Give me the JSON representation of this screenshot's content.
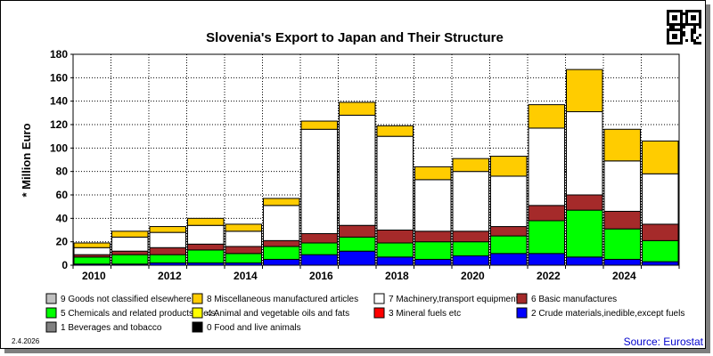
{
  "chart_data": {
    "type": "bar",
    "stacked": true,
    "title": "Slovenia's Export to Japan and Their Structure",
    "ylabel": "* Million Euro",
    "xlabel": "",
    "ylim": [
      0,
      180
    ],
    "yticks": [
      0,
      20,
      40,
      60,
      80,
      100,
      120,
      140,
      160,
      180
    ],
    "x_tick_labels": [
      "2010",
      "2012",
      "2014",
      "2016",
      "2018",
      "2020",
      "2022",
      "2024"
    ],
    "grid": true,
    "categories": [
      "2010",
      "2011",
      "2012",
      "2013",
      "2014",
      "2015",
      "2016",
      "2017",
      "2018",
      "2019",
      "2020",
      "2021",
      "2022",
      "2023",
      "2024",
      "2025"
    ],
    "series": [
      {
        "name": "0 Food and live animals",
        "color": "#000000",
        "values": [
          0,
          0,
          0,
          0,
          0,
          0,
          0,
          0,
          0,
          0,
          0,
          0,
          0,
          0,
          0,
          0
        ]
      },
      {
        "name": "1 Beverages and tobacco",
        "color": "#808080",
        "values": [
          0,
          0,
          0,
          0,
          0,
          0,
          0,
          0,
          0,
          0,
          0,
          0,
          0,
          0,
          0,
          0
        ]
      },
      {
        "name": "2 Crude materials,inedible,except fuels",
        "color": "#0000ff",
        "values": [
          1,
          1,
          2,
          2,
          2,
          5,
          9,
          12,
          7,
          5,
          8,
          10,
          10,
          7,
          5,
          3
        ]
      },
      {
        "name": "3 Mineral fuels etc",
        "color": "#ff0000",
        "values": [
          0,
          0,
          0,
          0,
          0,
          0,
          0,
          0,
          0,
          0,
          0,
          0,
          0,
          0,
          0,
          0
        ]
      },
      {
        "name": "5 Chemicals and related products,n.e.s.",
        "color": "#00ff00",
        "values": [
          6,
          8,
          7,
          11,
          8,
          11,
          10,
          12,
          12,
          15,
          12,
          15,
          28,
          40,
          26,
          18
        ]
      },
      {
        "name": "6 Basic manufactures",
        "color": "#a52a2a",
        "values": [
          2,
          3,
          6,
          5,
          6,
          5,
          8,
          10,
          11,
          9,
          9,
          8,
          13,
          13,
          15,
          14
        ]
      },
      {
        "name": "7 Machinery,transport equipment",
        "color": "#ffffff",
        "values": [
          6,
          12,
          13,
          16,
          13,
          30,
          89,
          94,
          80,
          44,
          51,
          43,
          66,
          71,
          43,
          43
        ]
      },
      {
        "name": "4 Animal and vegetable oils and fats",
        "color": "#ffff00",
        "values": [
          0,
          0,
          0,
          0,
          0,
          0,
          0,
          0,
          0,
          0,
          0,
          0,
          0,
          0,
          0,
          0
        ]
      },
      {
        "name": "8 Miscellaneous manufactured articles",
        "color": "#ffcc00",
        "values": [
          4,
          5,
          5,
          6,
          6,
          6,
          7,
          11,
          9,
          11,
          11,
          17,
          20,
          36,
          27,
          28
        ]
      },
      {
        "name": "9 Goods not classified elsewhere",
        "color": "#c0c0c0",
        "values": [
          0,
          0,
          0,
          0,
          0,
          0,
          0,
          0,
          0,
          0,
          0,
          0,
          0,
          0,
          0,
          0
        ]
      }
    ],
    "legend_placement": "bottom"
  },
  "legend": [
    {
      "label": "9 Goods not classified elsewhere",
      "color": "#c0c0c0"
    },
    {
      "label": "8 Miscellaneous manufactured articles",
      "color": "#ffcc00"
    },
    {
      "label": "7 Machinery,transport equipment",
      "color": "#ffffff"
    },
    {
      "label": "6 Basic manufactures",
      "color": "#a52a2a"
    },
    {
      "label": "5 Chemicals and related products,n.e.s.",
      "color": "#00ff00"
    },
    {
      "label": "4 Animal and vegetable oils and fats",
      "color": "#ffff00"
    },
    {
      "label": "3 Mineral fuels etc",
      "color": "#ff0000"
    },
    {
      "label": "2 Crude materials,inedible,except fuels",
      "color": "#0000ff"
    },
    {
      "label": "1 Beverages and tobacco",
      "color": "#808080"
    },
    {
      "label": "0 Food and live animals",
      "color": "#000000"
    }
  ],
  "footer": {
    "date": "2.4.2026",
    "source": "Source: Eurostat"
  },
  "colors": {
    "plot_background": "#ffffff",
    "shadow": "#7f7f7f",
    "source_text": "#0000cc"
  }
}
